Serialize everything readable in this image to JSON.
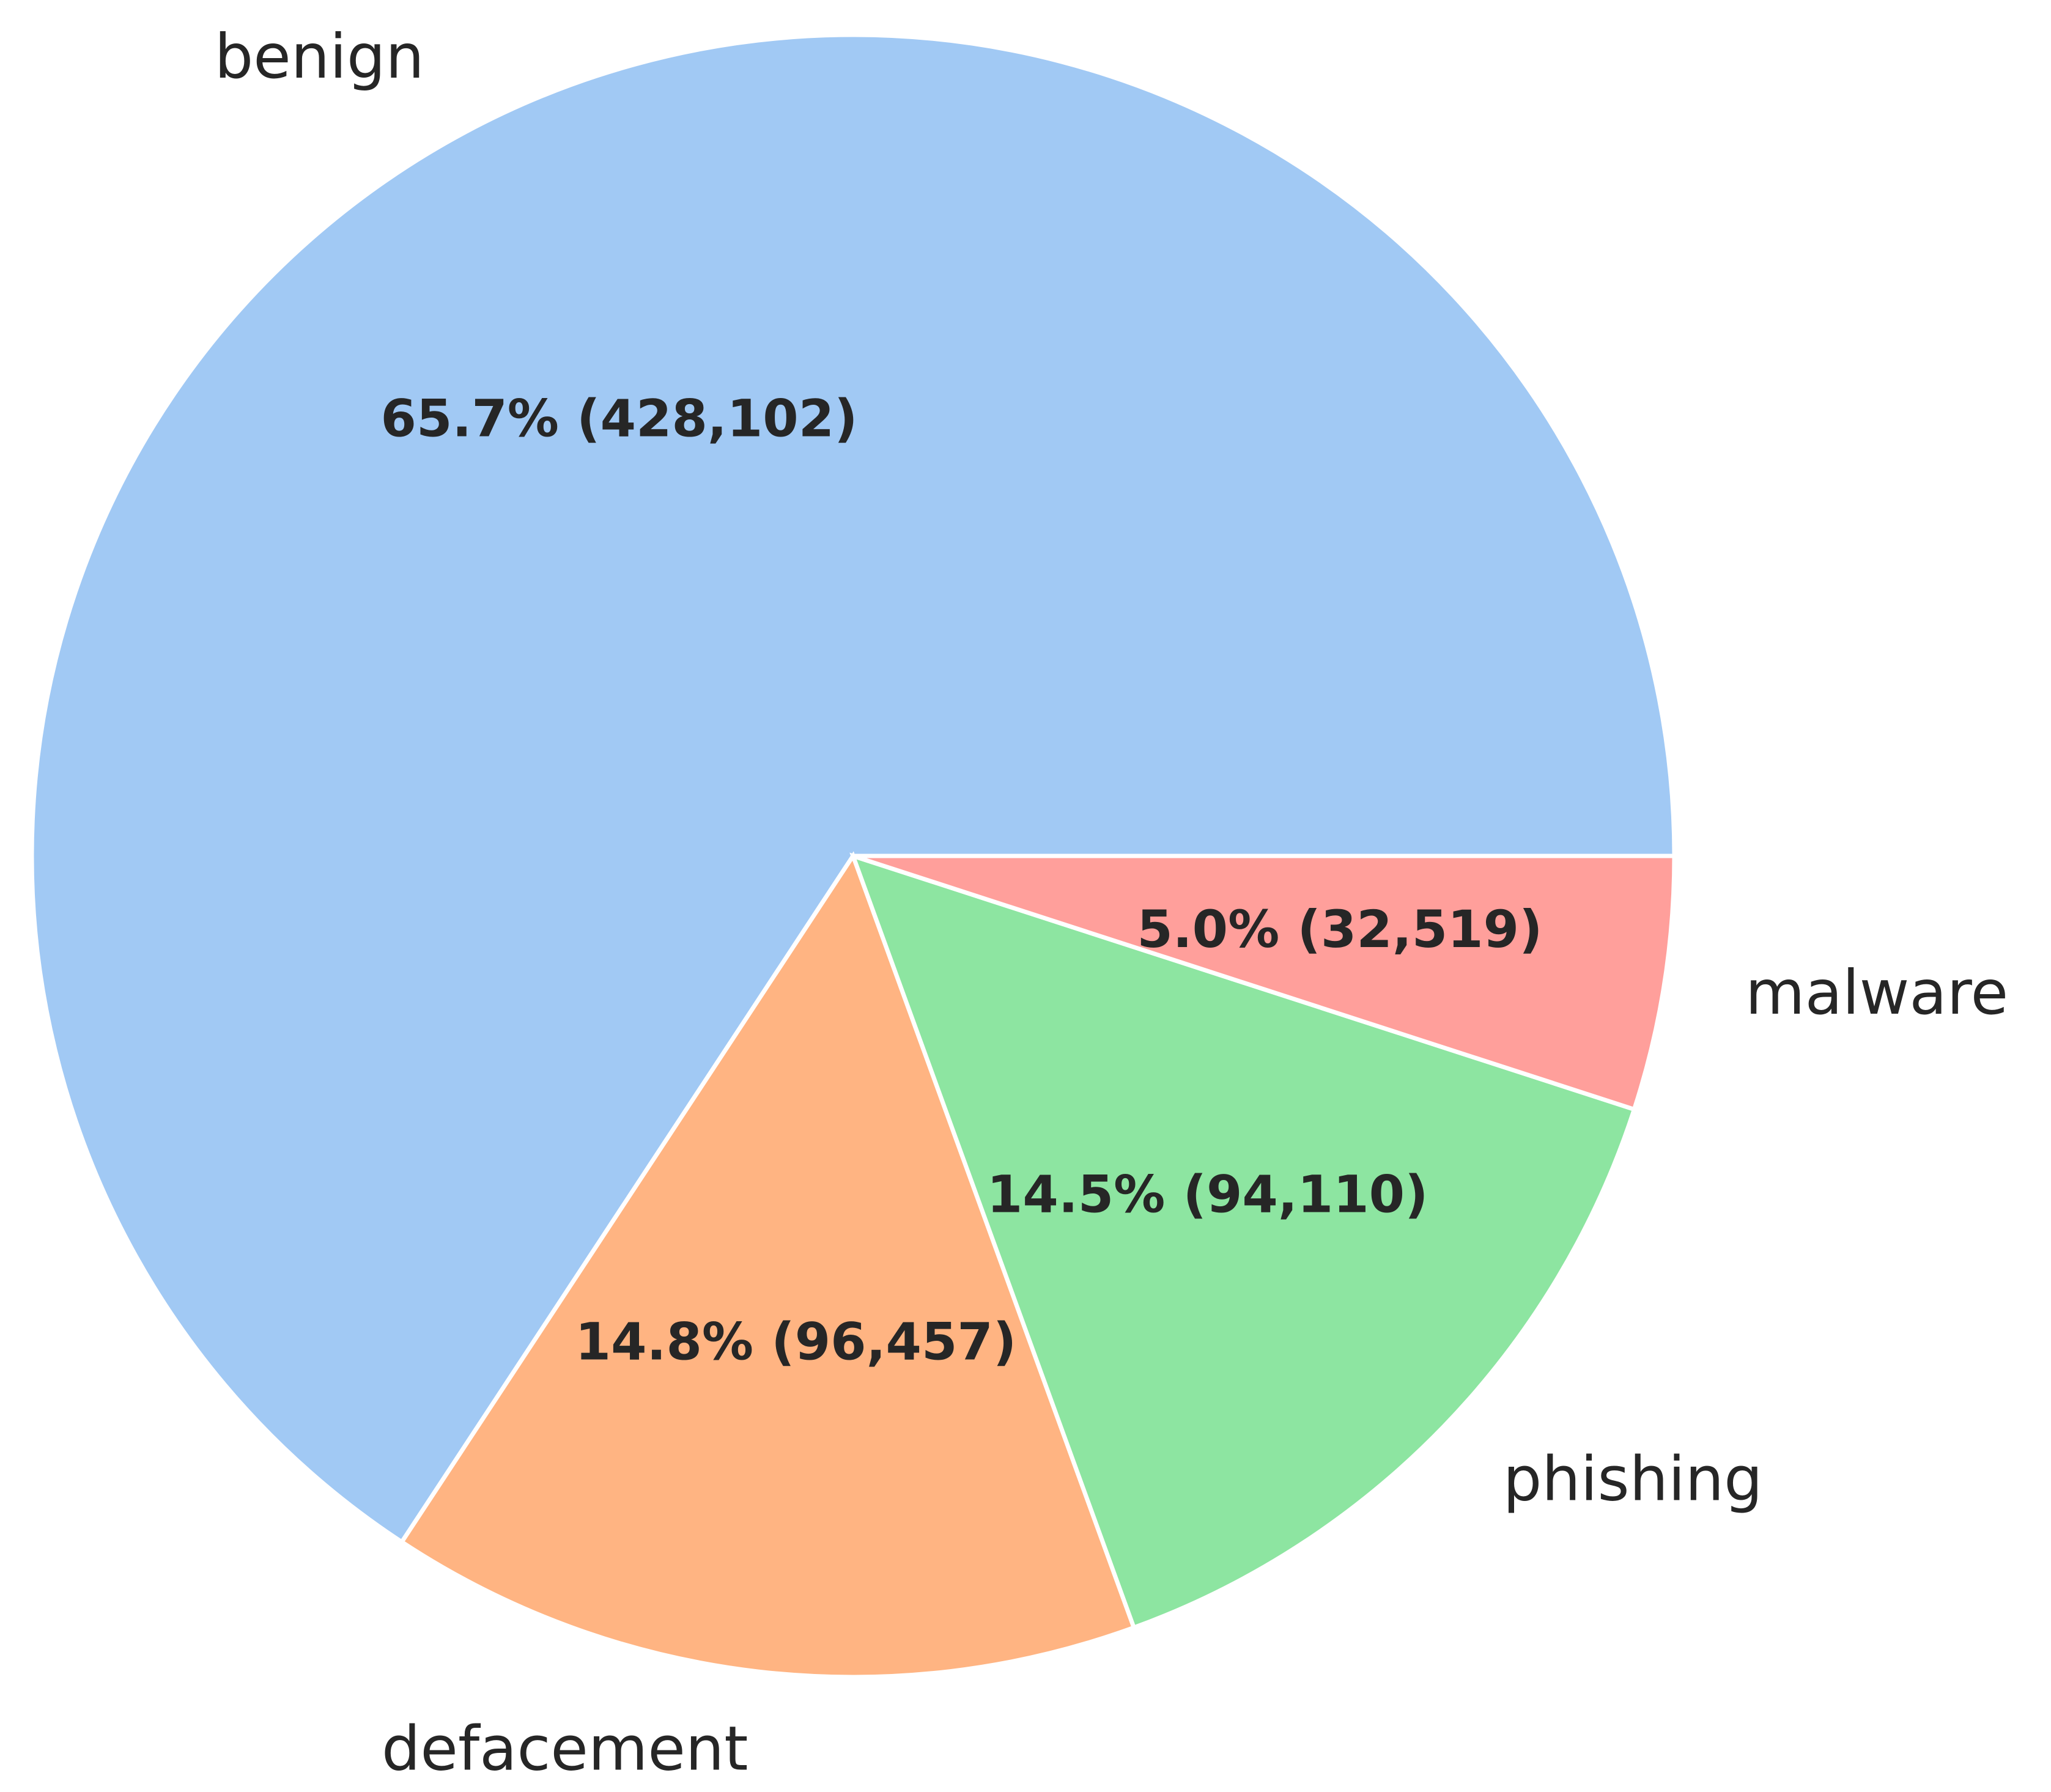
{
  "chart_data": {
    "type": "pie",
    "title": "",
    "start_angle_deg": 0,
    "direction": "counterclockwise",
    "slices": [
      {
        "label": "benign",
        "value": 428102,
        "percent_label": "65.7% (428,102)",
        "color": "#a1c9f4"
      },
      {
        "label": "defacement",
        "value": 96457,
        "percent_label": "14.8% (96,457)",
        "color": "#ffb482"
      },
      {
        "label": "phishing",
        "value": 94110,
        "percent_label": "14.5% (94,110)",
        "color": "#8de5a1"
      },
      {
        "label": "malware",
        "value": 32519,
        "percent_label": "5.0% (32,519)",
        "color": "#ff9f9b"
      }
    ],
    "legend": "none"
  }
}
